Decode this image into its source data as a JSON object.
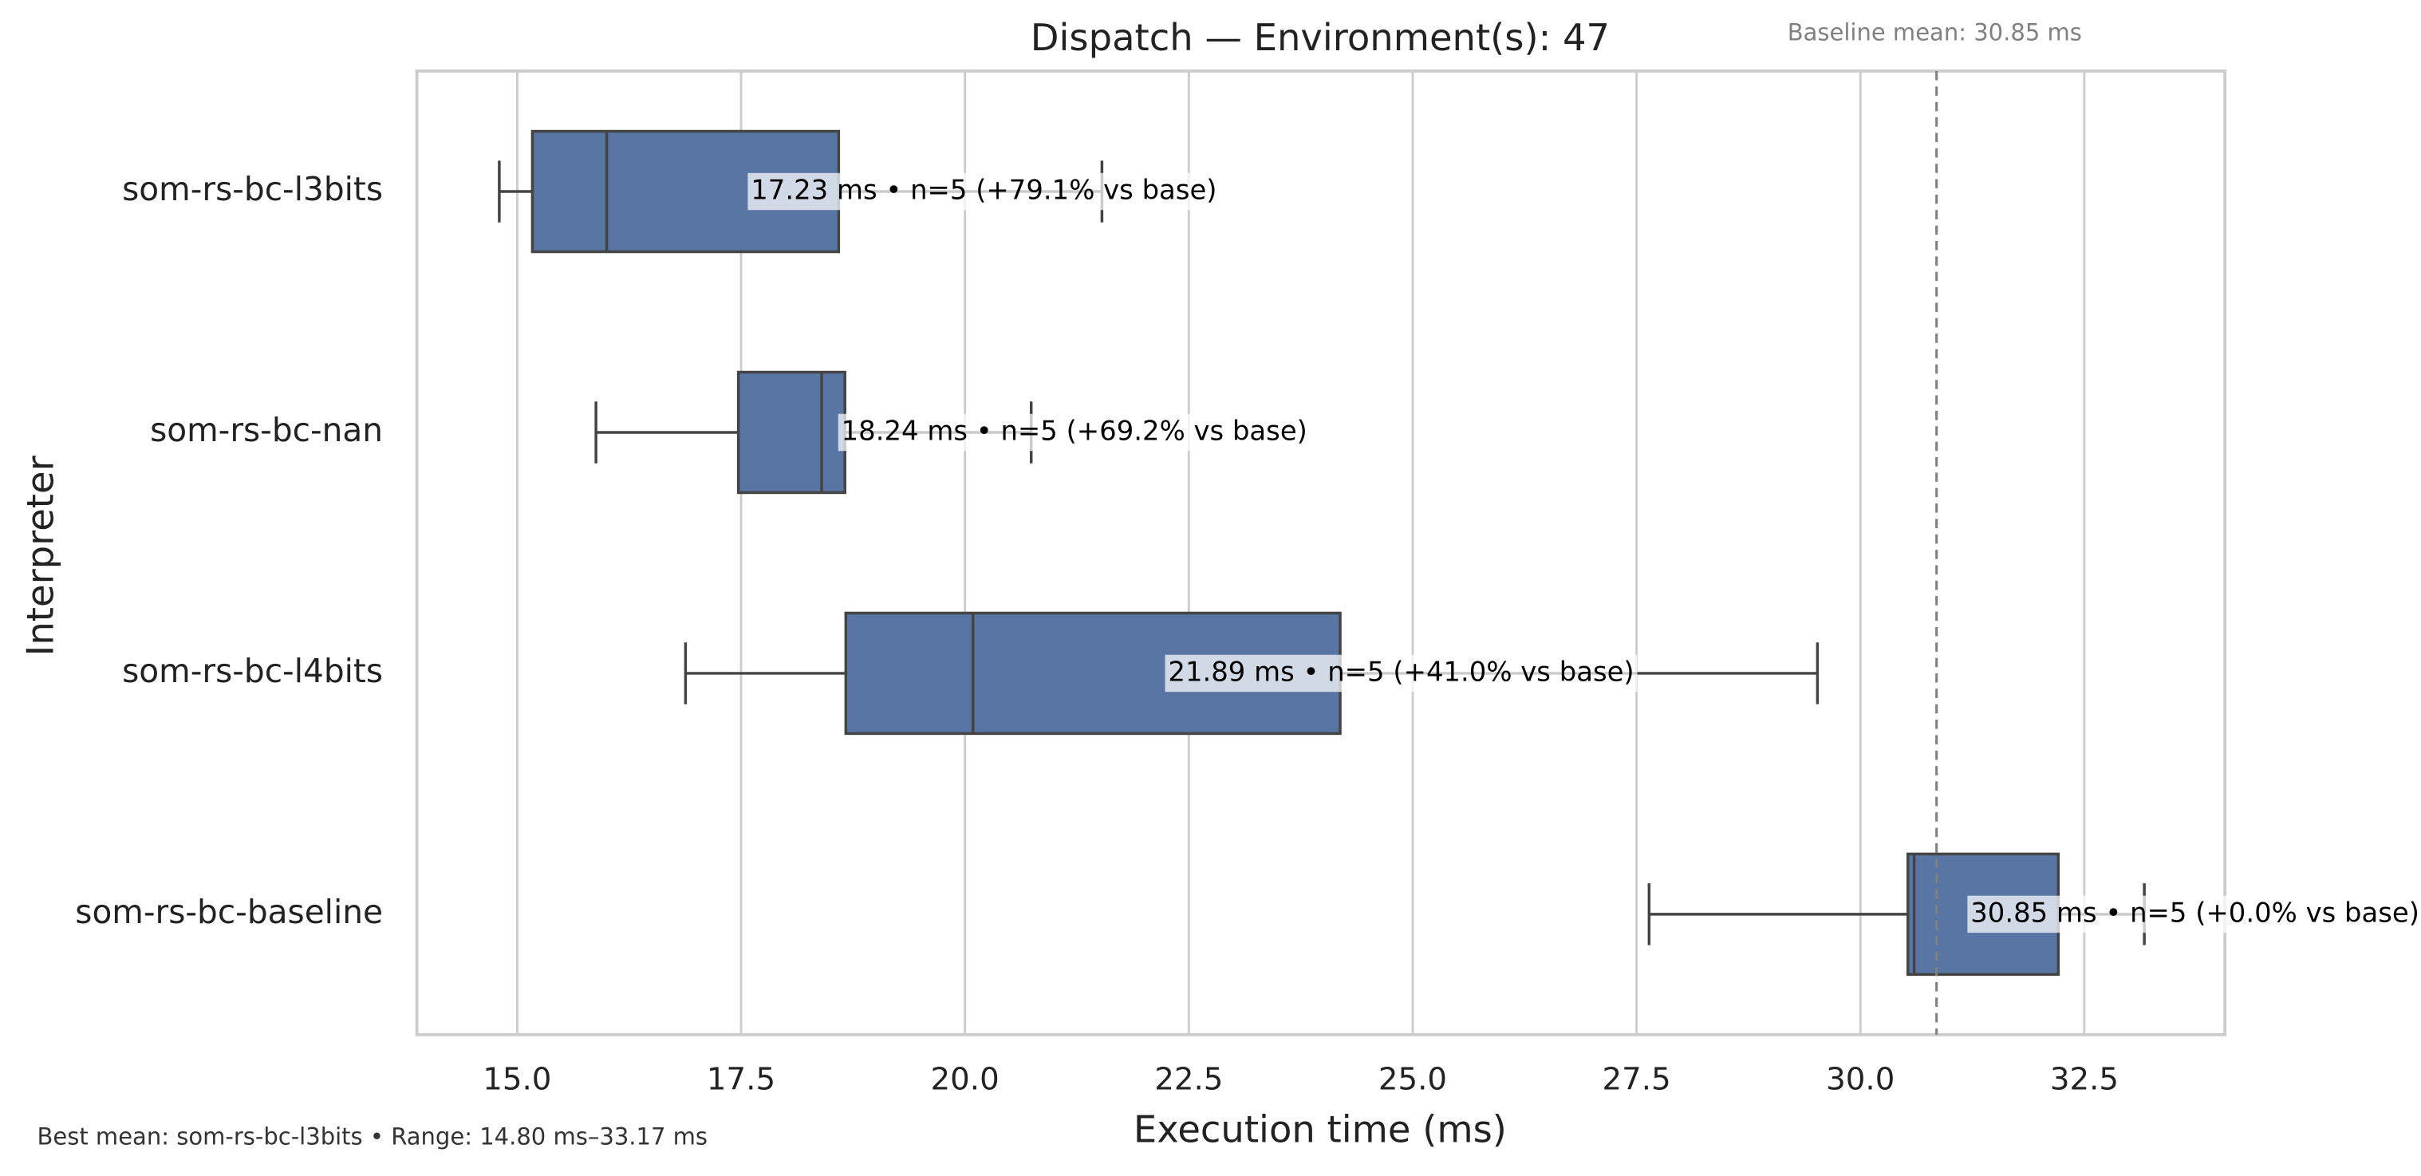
{
  "chart_data": {
    "type": "box",
    "title": "Dispatch — Environment(s): 47",
    "x_label": "Execution time (ms)",
    "y_label": "Interpreter",
    "categories": [
      "som-rs-bc-l3bits",
      "som-rs-bc-nan",
      "som-rs-bc-l4bits",
      "som-rs-bc-baseline"
    ],
    "boxes": [
      {
        "min": 14.8,
        "q1": 15.17,
        "median": 16.0,
        "q3": 18.59,
        "max": 21.53
      },
      {
        "min": 15.88,
        "q1": 17.47,
        "median": 18.4,
        "q3": 18.66,
        "max": 20.74
      },
      {
        "min": 16.88,
        "q1": 18.67,
        "median": 20.09,
        "q3": 24.19,
        "max": 29.52
      },
      {
        "min": 27.64,
        "q1": 30.53,
        "median": 30.6,
        "q3": 32.21,
        "max": 33.17
      }
    ],
    "means": [
      17.23,
      18.24,
      21.89,
      30.85
    ],
    "value_labels": [
      "17.23 ms • n=5 (+79.1% vs base)",
      "18.24 ms • n=5 (+69.2% vs base)",
      "21.89 ms • n=5 (+41.0% vs base)",
      "30.85 ms • n=5 (+0.0% vs base)"
    ],
    "color": "#5975a4",
    "baseline": 30.85,
    "baseline_label": "Baseline mean: 30.85 ms",
    "xlim": [
      13.88,
      34.07
    ],
    "xticks": [
      {
        "value": 15,
        "label": "15.0"
      },
      17.5,
      {
        "value": 20,
        "label": "20.0"
      },
      22.5,
      {
        "value": 25,
        "label": "25.0"
      },
      27.5,
      {
        "value": 30,
        "label": "30.0"
      },
      32.5
    ],
    "grid": true,
    "footnote": "Best mean: som-rs-bc-l3bits • Range: 14.80 ms–33.17 ms"
  }
}
